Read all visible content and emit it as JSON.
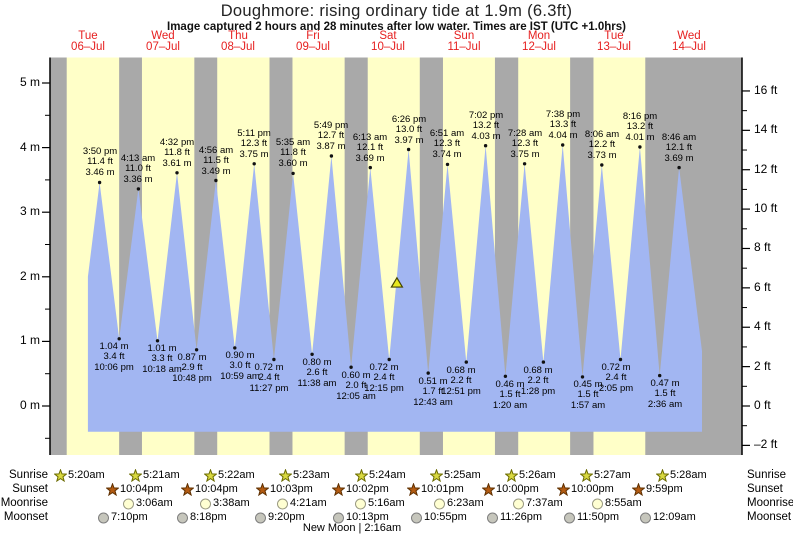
{
  "header": {
    "title": "Doughmore: rising ordinary tide at 1.9m (6.3ft)",
    "subtitle": "Image captured 2 hours and 28 minutes after low water. Times are IST (UTC +1.0hrs)"
  },
  "colors": {
    "day_band": "#ffffc8",
    "night_band": "#a9a9a9",
    "tide_fill": "#a2b6f2",
    "axis": "#000000",
    "day_label_red": "#e62020",
    "dot": "#111111",
    "marker_fill": "#e8e81e",
    "marker_stroke": "#444400",
    "sunrise_star_fill": "#d8d840",
    "sunrise_star_stroke": "#6b6b00",
    "sunset_star_fill": "#b35b12",
    "sunset_star_stroke": "#5f3000",
    "moonrise_fill": "#ffffd2",
    "moonrise_stroke": "#9a9a82",
    "moonset_fill": "#c6c6bc",
    "moonset_stroke": "#7f7f7f"
  },
  "chart_data": {
    "type": "area",
    "title": "Doughmore: rising ordinary tide at 1.9m (6.3ft)",
    "subtitle": "Image captured 2 hours and 28 minutes after low water. Times are IST (UTC +1.0hrs)",
    "xlabel": "",
    "ylabel_left": "m",
    "ylabel_right": "ft",
    "ylim_m": [
      -0.76,
      5.4
    ],
    "grid": false,
    "y_left_ticks_m": [
      0,
      1,
      2,
      3,
      4,
      5
    ],
    "y_right_ticks_ft": [
      -2,
      0,
      2,
      4,
      6,
      8,
      10,
      12,
      14,
      16
    ],
    "days": [
      {
        "name": "Tue",
        "date": "06–Jul"
      },
      {
        "name": "Wed",
        "date": "07–Jul"
      },
      {
        "name": "Thu",
        "date": "08–Jul"
      },
      {
        "name": "Fri",
        "date": "09–Jul"
      },
      {
        "name": "Sat",
        "date": "10–Jul"
      },
      {
        "name": "Sun",
        "date": "11–Jul"
      },
      {
        "name": "Mon",
        "date": "12–Jul"
      },
      {
        "name": "Tue",
        "date": "13–Jul"
      },
      {
        "name": "Wed",
        "date": "14–Jul"
      }
    ],
    "tides": [
      {
        "type": "high",
        "day": 0,
        "time": "3:50 pm",
        "ft": "11.4 ft",
        "m": "3.46 m",
        "height_m": 3.46
      },
      {
        "type": "low",
        "day": 0,
        "time": "10:06 pm",
        "ft": "3.4 ft",
        "m": "1.04 m",
        "height_m": 1.04
      },
      {
        "type": "high",
        "day": 1,
        "time": "4:13 am",
        "ft": "11.0 ft",
        "m": "3.36 m",
        "height_m": 3.36
      },
      {
        "type": "low",
        "day": 1,
        "time": "10:18 am",
        "ft": "3.3 ft",
        "m": "1.01 m",
        "height_m": 1.01
      },
      {
        "type": "high",
        "day": 1,
        "time": "4:32 pm",
        "ft": "11.8 ft",
        "m": "3.61 m",
        "height_m": 3.61
      },
      {
        "type": "low",
        "day": 1,
        "time": "10:48 pm",
        "ft": "2.9 ft",
        "m": "0.87 m",
        "height_m": 0.87
      },
      {
        "type": "high",
        "day": 2,
        "time": "4:56 am",
        "ft": "11.5 ft",
        "m": "3.49 m",
        "height_m": 3.49
      },
      {
        "type": "low",
        "day": 2,
        "time": "10:59 am",
        "ft": "3.0 ft",
        "m": "0.90 m",
        "height_m": 0.9
      },
      {
        "type": "high",
        "day": 2,
        "time": "5:11 pm",
        "ft": "12.3 ft",
        "m": "3.75 m",
        "height_m": 3.75
      },
      {
        "type": "low",
        "day": 2,
        "time": "11:27 pm",
        "ft": "2.4 ft",
        "m": "0.72 m",
        "height_m": 0.72
      },
      {
        "type": "high",
        "day": 3,
        "time": "5:35 am",
        "ft": "11.8 ft",
        "m": "3.60 m",
        "height_m": 3.6
      },
      {
        "type": "low",
        "day": 3,
        "time": "11:38 am",
        "ft": "2.6 ft",
        "m": "0.80 m",
        "height_m": 0.8
      },
      {
        "type": "high",
        "day": 3,
        "time": "5:49 pm",
        "ft": "12.7 ft",
        "m": "3.87 m",
        "height_m": 3.87
      },
      {
        "type": "low",
        "day": 4,
        "time": "12:05 am",
        "ft": "2.0 ft",
        "m": "0.60 m",
        "height_m": 0.6
      },
      {
        "type": "high",
        "day": 4,
        "time": "6:13 am",
        "ft": "12.1 ft",
        "m": "3.69 m",
        "height_m": 3.69
      },
      {
        "type": "low",
        "day": 4,
        "time": "12:15 pm",
        "ft": "2.4 ft",
        "m": "0.72 m",
        "height_m": 0.72
      },
      {
        "type": "high",
        "day": 4,
        "time": "6:26 pm",
        "ft": "13.0 ft",
        "m": "3.97 m",
        "height_m": 3.97
      },
      {
        "type": "low",
        "day": 5,
        "time": "12:43 am",
        "ft": "1.7 ft",
        "m": "0.51 m",
        "height_m": 0.51
      },
      {
        "type": "high",
        "day": 5,
        "time": "6:51 am",
        "ft": "12.3 ft",
        "m": "3.74 m",
        "height_m": 3.74
      },
      {
        "type": "low",
        "day": 5,
        "time": "12:51 pm",
        "ft": "2.2 ft",
        "m": "0.68 m",
        "height_m": 0.68
      },
      {
        "type": "high",
        "day": 5,
        "time": "7:02 pm",
        "ft": "13.2 ft",
        "m": "4.03 m",
        "height_m": 4.03
      },
      {
        "type": "low",
        "day": 6,
        "time": "1:20 am",
        "ft": "1.5 ft",
        "m": "0.46 m",
        "height_m": 0.46
      },
      {
        "type": "high",
        "day": 6,
        "time": "7:28 am",
        "ft": "12.3 ft",
        "m": "3.75 m",
        "height_m": 3.75
      },
      {
        "type": "low",
        "day": 6,
        "time": "1:28 pm",
        "ft": "2.2 ft",
        "m": "0.68 m",
        "height_m": 0.68
      },
      {
        "type": "high",
        "day": 6,
        "time": "7:38 pm",
        "ft": "13.3 ft",
        "m": "4.04 m",
        "height_m": 4.04
      },
      {
        "type": "low",
        "day": 7,
        "time": "1:57 am",
        "ft": "1.5 ft",
        "m": "0.45 m",
        "height_m": 0.45
      },
      {
        "type": "high",
        "day": 7,
        "time": "8:06 am",
        "ft": "12.2 ft",
        "m": "3.73 m",
        "height_m": 3.73
      },
      {
        "type": "low",
        "day": 7,
        "time": "2:05 pm",
        "ft": "2.4 ft",
        "m": "0.72 m",
        "height_m": 0.72
      },
      {
        "type": "high",
        "day": 7,
        "time": "8:16 pm",
        "ft": "13.2 ft",
        "m": "4.01 m",
        "height_m": 4.01
      },
      {
        "type": "low",
        "day": 8,
        "time": "2:36 am",
        "ft": "1.5 ft",
        "m": "0.47 m",
        "height_m": 0.47
      },
      {
        "type": "high",
        "day": 8,
        "time": "8:46 am",
        "ft": "12.1 ft",
        "m": "3.69 m",
        "height_m": 3.69
      }
    ],
    "curve": {
      "start": {
        "t_hours": 12.1,
        "height_m": 2.0
      },
      "end": {
        "t_hours": 208.1,
        "height_m": 0.85
      },
      "fill_base_m": -0.4
    },
    "current_marker": {
      "day": 4,
      "hour": 14.72,
      "height_m": 1.9
    }
  },
  "astro": {
    "row_labels": [
      "Sunrise",
      "Sunset",
      "Moonrise",
      "Moonset"
    ],
    "rows": [
      {
        "name": "sunrise",
        "icon": "sunrise-star-icon",
        "entries": [
          {
            "day": 0,
            "time": "5:20am"
          },
          {
            "day": 1,
            "time": "5:21am"
          },
          {
            "day": 2,
            "time": "5:22am"
          },
          {
            "day": 3,
            "time": "5:23am"
          },
          {
            "day": 4,
            "time": "5:24am"
          },
          {
            "day": 5,
            "time": "5:25am"
          },
          {
            "day": 6,
            "time": "5:26am"
          },
          {
            "day": 7,
            "time": "5:27am"
          },
          {
            "day": 8,
            "time": "5:28am"
          }
        ]
      },
      {
        "name": "sunset",
        "icon": "sunset-star-icon",
        "entries": [
          {
            "day": 0,
            "time": "10:04pm"
          },
          {
            "day": 1,
            "time": "10:04pm"
          },
          {
            "day": 2,
            "time": "10:03pm"
          },
          {
            "day": 3,
            "time": "10:02pm"
          },
          {
            "day": 4,
            "time": "10:01pm"
          },
          {
            "day": 5,
            "time": "10:00pm"
          },
          {
            "day": 6,
            "time": "10:00pm"
          },
          {
            "day": 7,
            "time": "9:59pm"
          }
        ]
      },
      {
        "name": "moonrise",
        "icon": "moonrise-icon",
        "entries": [
          {
            "day": 1,
            "time": "3:06am"
          },
          {
            "day": 2,
            "time": "3:38am"
          },
          {
            "day": 3,
            "time": "4:21am"
          },
          {
            "day": 4,
            "time": "5:16am"
          },
          {
            "day": 5,
            "time": "6:23am"
          },
          {
            "day": 6,
            "time": "7:37am"
          },
          {
            "day": 7,
            "time": "8:55am"
          }
        ]
      },
      {
        "name": "moonset",
        "icon": "moonset-icon",
        "entries": [
          {
            "day": 0,
            "time": "7:10pm"
          },
          {
            "day": 1,
            "time": "8:18pm"
          },
          {
            "day": 2,
            "time": "9:20pm"
          },
          {
            "day": 3,
            "time": "10:13pm"
          },
          {
            "day": 4,
            "time": "10:55pm"
          },
          {
            "day": 5,
            "time": "11:26pm"
          },
          {
            "day": 6,
            "time": "11:50pm"
          },
          {
            "day": 8,
            "time": "12:09am"
          }
        ]
      }
    ],
    "new_moon_label": "New Moon | 2:16am"
  }
}
